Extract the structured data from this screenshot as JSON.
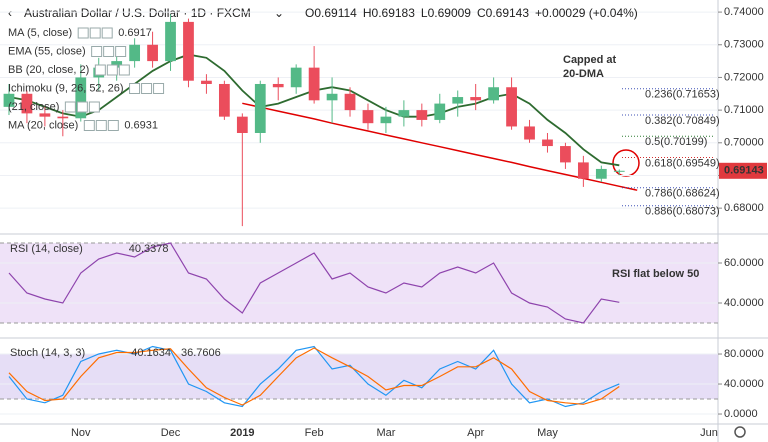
{
  "header": {
    "symbol": "Australian Dollar / U.S. Dollar · 1D · FXCM",
    "ohlc_letters": [
      "O",
      "H",
      "L",
      "C"
    ],
    "change": "+0.00029 (+0.04%)",
    "indicators": [
      {
        "name": "MA (5, close)",
        "value": "0.6917"
      },
      {
        "name": "EMA (55, close)"
      },
      {
        "name": "BB (20, close, 2)"
      },
      {
        "name": "Ichimoku (9, 26, 52, 26)"
      },
      {
        "name": "(21, close)"
      },
      {
        "name": "MA (20, close)",
        "value": "0.6931"
      }
    ]
  },
  "chart_data": [
    {
      "type": "candlestick",
      "categories": [
        null,
        null,
        null,
        null,
        "Nov",
        null,
        null,
        null,
        null,
        "Dec",
        null,
        null,
        null,
        "2019",
        null,
        null,
        null,
        "Feb",
        null,
        null,
        null,
        "Mar",
        null,
        null,
        null,
        null,
        "Apr",
        null,
        null,
        null,
        "May",
        null,
        null,
        null,
        null,
        null,
        null,
        null,
        null,
        "Jun"
      ],
      "open": [
        0.711,
        0.715,
        0.709,
        0.708,
        0.7075,
        0.72,
        0.723,
        0.725,
        0.73,
        0.725,
        0.737,
        0.719,
        0.718,
        0.708,
        0.703,
        0.718,
        0.717,
        0.723,
        0.713,
        0.715,
        0.71,
        0.706,
        0.708,
        0.71,
        0.707,
        0.712,
        0.714,
        0.713,
        0.717,
        0.705,
        0.701,
        0.699,
        0.694,
        0.689,
        0.69114,
        null,
        null,
        null,
        null,
        null
      ],
      "high": [
        0.718,
        0.716,
        0.711,
        0.71,
        0.724,
        0.726,
        0.729,
        0.732,
        0.734,
        0.7393,
        0.738,
        0.721,
        0.719,
        0.709,
        0.719,
        0.72,
        0.724,
        0.7296,
        0.72,
        0.717,
        0.712,
        0.711,
        0.713,
        0.712,
        0.715,
        0.716,
        0.718,
        0.72,
        0.72,
        0.707,
        0.703,
        0.7,
        0.696,
        0.693,
        0.69183,
        null,
        null,
        null,
        null,
        null
      ],
      "low": [
        0.7085,
        0.706,
        0.705,
        0.702,
        0.7065,
        0.716,
        0.719,
        0.723,
        0.723,
        0.722,
        0.717,
        0.715,
        0.707,
        0.6745,
        0.7,
        0.713,
        0.715,
        0.712,
        0.706,
        0.708,
        0.704,
        0.703,
        0.705,
        0.705,
        0.706,
        0.708,
        0.71,
        0.712,
        0.704,
        0.7,
        0.697,
        0.692,
        0.6865,
        0.688,
        0.69009,
        null,
        null,
        null,
        null,
        null
      ],
      "close": [
        0.715,
        0.709,
        0.708,
        0.7075,
        0.72,
        0.723,
        0.725,
        0.73,
        0.725,
        0.737,
        0.719,
        0.718,
        0.708,
        0.703,
        0.718,
        0.717,
        0.723,
        0.713,
        0.715,
        0.71,
        0.706,
        0.708,
        0.71,
        0.707,
        0.712,
        0.714,
        0.713,
        0.717,
        0.705,
        0.701,
        0.699,
        0.694,
        0.689,
        0.692,
        0.69143,
        null,
        null,
        null,
        null,
        null
      ],
      "up_color": "#53b987",
      "down_color": "#eb4d5c",
      "series": [
        {
          "color": "#2e6b30",
          "values": [
            0.714,
            0.713,
            0.711,
            0.709,
            0.708,
            0.71,
            0.714,
            0.718,
            0.722,
            0.725,
            0.727,
            0.726,
            0.722,
            0.716,
            0.711,
            0.712,
            0.714,
            0.716,
            0.717,
            0.716,
            0.713,
            0.71,
            0.708,
            0.708,
            0.709,
            0.711,
            0.712,
            0.714,
            0.715,
            0.712,
            0.707,
            0.703,
            0.698,
            0.694,
            0.6931,
            null,
            null,
            null,
            null,
            null
          ]
        }
      ],
      "trendline": {
        "color": "#e00000",
        "values": [
          null,
          null,
          null,
          null,
          null,
          null,
          null,
          null,
          null,
          null,
          null,
          null,
          null,
          0.7121,
          0.7109,
          0.7097,
          0.7085,
          0.7073,
          0.706,
          0.7048,
          0.7036,
          0.7024,
          0.7012,
          0.7,
          0.6988,
          0.6976,
          0.6964,
          0.6952,
          0.694,
          0.6927,
          0.6915,
          0.6903,
          0.6891,
          0.6879,
          0.6867,
          0.6855,
          null,
          null,
          null,
          null
        ]
      },
      "fib_levels": [
        {
          "value": 0.71653,
          "label": "0.236(0.71653)",
          "color": "#3f51b5"
        },
        {
          "value": 0.70849,
          "label": "0.382(0.70849)",
          "color": "#3f51b5"
        },
        {
          "value": 0.70199,
          "label": "0.5(0.70199)",
          "color": "#2e7d32"
        },
        {
          "value": 0.69549,
          "label": "0.618(0.69549)",
          "color": "#d32f2f"
        },
        {
          "value": 0.68624,
          "label": "0.786(0.68624)",
          "color": "#3f51b5"
        },
        {
          "value": 0.68073,
          "label": "0.886(0.68073)",
          "color": "#3f51b5"
        }
      ],
      "annotation": [
        "Capped at",
        "20-DMA"
      ],
      "ylim": [
        0.6727,
        0.7437
      ],
      "yticks": [
        {
          "value": 0.74,
          "label": "0.74000"
        },
        {
          "value": 0.73,
          "label": "0.73000"
        },
        {
          "value": 0.72,
          "label": "0.72000"
        },
        {
          "value": 0.71,
          "label": "0.71000"
        },
        {
          "value": 0.7,
          "label": "0.70000"
        },
        {
          "value": 0.69,
          "label": "0.69000"
        },
        {
          "value": 0.68,
          "label": "0.68000"
        }
      ],
      "grid": true,
      "last_price_color": "#e0393e"
    },
    {
      "type": "line",
      "title": "RSI (14, close)",
      "annotation": "RSI flat below 50",
      "series": [
        {
          "color": "#8e44ad",
          "values": [
            55,
            45,
            42,
            40,
            55,
            62,
            65,
            63,
            68,
            70,
            55,
            52,
            42,
            35,
            50,
            55,
            60,
            65,
            52,
            55,
            48,
            45,
            50,
            48,
            55,
            58,
            55,
            60,
            45,
            40,
            38,
            32,
            30,
            42,
            40.3378,
            null,
            null,
            null,
            null,
            null
          ]
        }
      ],
      "band": [
        30,
        70
      ],
      "band_color": "#e8d5f5",
      "ylim": [
        23.5,
        73.5
      ],
      "yticks": [
        {
          "value": 60,
          "label": "60.0000"
        },
        {
          "value": 40,
          "label": "40.0000"
        }
      ],
      "grid": true
    },
    {
      "type": "line",
      "title": "Stoch (14, 3, 3)",
      "series": [
        {
          "color": "#2196f3",
          "values": [
            50,
            20,
            15,
            25,
            70,
            80,
            85,
            80,
            90,
            85,
            40,
            30,
            15,
            10,
            40,
            60,
            85,
            90,
            60,
            65,
            40,
            25,
            45,
            35,
            60,
            70,
            60,
            85,
            40,
            15,
            20,
            10,
            15,
            30,
            40.1634,
            null,
            null,
            null,
            null,
            null
          ]
        },
        {
          "color": "#ff6d00",
          "values": [
            55,
            30,
            18,
            20,
            50,
            75,
            82,
            82,
            85,
            87,
            60,
            35,
            22,
            12,
            25,
            50,
            75,
            88,
            75,
            63,
            50,
            32,
            38,
            38,
            50,
            63,
            63,
            75,
            60,
            30,
            18,
            15,
            13,
            20,
            36.7606,
            null,
            null,
            null,
            null,
            null
          ]
        }
      ],
      "band": [
        20,
        80
      ],
      "band_color": "#dcd0f2",
      "ylim": [
        -13.3,
        98.7
      ],
      "yticks": [
        {
          "value": 80,
          "label": "80.0000"
        },
        {
          "value": 40,
          "label": "40.0000"
        },
        {
          "value": 0,
          "label": "0.0000"
        }
      ],
      "grid": true
    }
  ]
}
